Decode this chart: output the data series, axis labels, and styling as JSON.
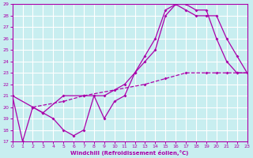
{
  "xlabel": "Windchill (Refroidissement éolien,°C)",
  "bg_color": "#c8eef0",
  "grid_color": "#ffffff",
  "line_color": "#aa00aa",
  "xmin": 0,
  "xmax": 23,
  "ymin": 17,
  "ymax": 29,
  "line1": [
    [
      0,
      21
    ],
    [
      1,
      17
    ],
    [
      2,
      20
    ],
    [
      3,
      19.5
    ],
    [
      4,
      19
    ],
    [
      5,
      18
    ],
    [
      6,
      17.5
    ],
    [
      7,
      18
    ],
    [
      8,
      21
    ],
    [
      9,
      19
    ],
    [
      10,
      20.5
    ],
    [
      11,
      21
    ],
    [
      12,
      23
    ],
    [
      13,
      24.5
    ],
    [
      14,
      26
    ],
    [
      15,
      28.5
    ],
    [
      16,
      29
    ],
    [
      17,
      29
    ],
    [
      18,
      28.5
    ],
    [
      19,
      28.5
    ],
    [
      20,
      26
    ],
    [
      21,
      24
    ],
    [
      22,
      23
    ],
    [
      23,
      23
    ]
  ],
  "line2": [
    [
      0,
      21
    ],
    [
      2,
      20
    ],
    [
      3,
      19.5
    ],
    [
      5,
      21
    ],
    [
      7,
      21
    ],
    [
      9,
      21
    ],
    [
      11,
      22
    ],
    [
      12,
      23
    ],
    [
      13,
      24
    ],
    [
      14,
      25
    ],
    [
      15,
      28
    ],
    [
      16,
      29
    ],
    [
      17,
      28.5
    ],
    [
      18,
      28
    ],
    [
      19,
      28
    ],
    [
      20,
      28
    ],
    [
      21,
      26
    ],
    [
      22,
      24.5
    ],
    [
      23,
      23
    ]
  ],
  "line3": [
    [
      2,
      20
    ],
    [
      5,
      20.5
    ],
    [
      7,
      21
    ],
    [
      10,
      21.5
    ],
    [
      13,
      22
    ],
    [
      15,
      22.5
    ],
    [
      17,
      23
    ],
    [
      19,
      23
    ],
    [
      20,
      23
    ],
    [
      21,
      23
    ],
    [
      22,
      23
    ],
    [
      23,
      23
    ]
  ]
}
